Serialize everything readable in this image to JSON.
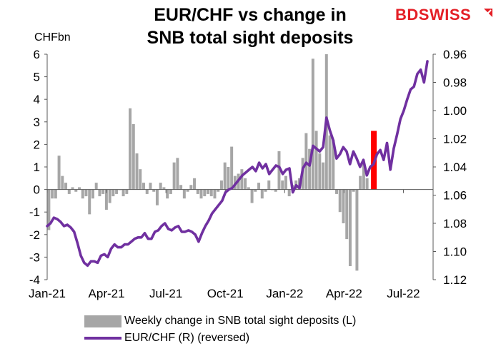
{
  "title_line1": "EUR/CHF vs change in",
  "title_line2": "SNB total sight deposits",
  "logo": {
    "part1": "BD",
    "part2": "SWISS",
    "color": "#e41f26"
  },
  "left_unit": "CHFbn",
  "legend": {
    "bars": "Weekly change in SNB total sight deposits (L)",
    "line": "EUR/CHF (R) (reversed)"
  },
  "chart_data": {
    "type": "bar+line",
    "x_ticks": [
      "Jan-21",
      "Apr-21",
      "Jul-21",
      "Oct-21",
      "Jan-22",
      "Apr-22",
      "Jul-22"
    ],
    "left_axis": {
      "label": "CHFbn",
      "min": -4,
      "max": 6,
      "step": 1,
      "ticks": [
        "-4",
        "-3",
        "-2",
        "-1",
        "0",
        "1",
        "2",
        "3",
        "4",
        "5",
        "6"
      ]
    },
    "right_axis": {
      "reversed": true,
      "min": 0.96,
      "max": 1.12,
      "step": 0.02,
      "ticks": [
        "0.96",
        "0.98",
        "1.00",
        "1.02",
        "1.04",
        "1.06",
        "1.08",
        "1.10",
        "1.12"
      ]
    },
    "colors": {
      "bars": "#a6a6a6",
      "line": "#7030a0",
      "highlight": "#ff0000"
    },
    "bars_series": {
      "name": "Weekly change in SNB total sight deposits (L)",
      "start_date": "2021-01-01",
      "freq": "weekly",
      "values": [
        -1.8,
        -0.4,
        -0.4,
        1.5,
        0.6,
        0.3,
        -0.2,
        0.1,
        -0.1,
        0.1,
        -0.4,
        -0.3,
        -1.1,
        -0.4,
        0.3,
        -0.3,
        -0.2,
        -0.9,
        -0.6,
        -0.3,
        -0.2,
        0.0,
        -0.3,
        -0.2,
        3.6,
        2.9,
        1.6,
        0.9,
        0.3,
        -0.2,
        0.3,
        -0.1,
        -0.7,
        0.3,
        0.1,
        -0.4,
        -0.2,
        1.2,
        1.4,
        0.2,
        -0.4,
        -0.1,
        0.2,
        0.5,
        -0.2,
        -0.4,
        -0.3,
        -0.2,
        -0.3,
        -0.4,
        -0.1,
        0.4,
        1.2,
        1.0,
        1.9,
        0.6,
        0.7,
        0.9,
        0.5,
        0.1,
        -0.6,
        -0.1,
        0.3,
        -0.4,
        -0.1,
        0.4,
        0.0,
        -0.1,
        1.7,
        0.4,
        0.6,
        -0.3,
        0.2,
        0.4,
        0.5,
        1.4,
        2.5,
        1.8,
        5.8,
        2.6,
        1.6,
        1.2,
        6.0,
        2.4,
        2.2,
        -0.2,
        -1.0,
        -1.5,
        -2.2,
        -3.4,
        -0.1,
        -3.6,
        0.6,
        1.2,
        0.5
      ],
      "highlight": {
        "value": 2.6
      }
    },
    "line_series": {
      "name": "EUR/CHF (R) (reversed)",
      "start_date": "2021-01-01",
      "freq": "weekly",
      "values": [
        1.082,
        1.08,
        1.076,
        1.077,
        1.079,
        1.082,
        1.081,
        1.083,
        1.086,
        1.094,
        1.103,
        1.108,
        1.11,
        1.107,
        1.107,
        1.108,
        1.103,
        1.102,
        1.104,
        1.098,
        1.095,
        1.097,
        1.097,
        1.095,
        1.095,
        1.093,
        1.091,
        1.09,
        1.09,
        1.087,
        1.091,
        1.091,
        1.086,
        1.085,
        1.082,
        1.08,
        1.084,
        1.085,
        1.083,
        1.082,
        1.086,
        1.086,
        1.085,
        1.086,
        1.088,
        1.093,
        1.087,
        1.082,
        1.078,
        1.073,
        1.07,
        1.067,
        1.064,
        1.058,
        1.056,
        1.055,
        1.052,
        1.049,
        1.046,
        1.044,
        1.042,
        1.04,
        1.043,
        1.037,
        1.041,
        1.038,
        1.045,
        1.042,
        1.039,
        1.04,
        1.045,
        1.042,
        1.041,
        1.058,
        1.053,
        1.055,
        1.041,
        1.037,
        1.039,
        1.025,
        1.027,
        1.029,
        1.026,
        1.005,
        1.014,
        1.021,
        1.034,
        1.031,
        1.026,
        1.029,
        1.038,
        1.029,
        1.034,
        1.04,
        1.035,
        1.046,
        1.04,
        1.038,
        1.031,
        1.028,
        1.035,
        1.023,
        1.042,
        1.027,
        1.017,
        1.006,
        1.0,
        0.992,
        0.985,
        0.983,
        0.974,
        0.971,
        0.98,
        0.965
      ]
    }
  }
}
